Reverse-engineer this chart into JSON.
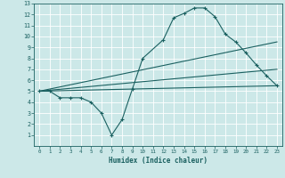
{
  "bg_color": "#cce8e8",
  "grid_color": "#ffffff",
  "line_color": "#1a6060",
  "xlabel": "Humidex (Indice chaleur)",
  "xlim": [
    -0.5,
    23.5
  ],
  "ylim": [
    0,
    13
  ],
  "xticks": [
    0,
    1,
    2,
    3,
    4,
    5,
    6,
    7,
    8,
    9,
    10,
    11,
    12,
    13,
    14,
    15,
    16,
    17,
    18,
    19,
    20,
    21,
    22,
    23
  ],
  "yticks": [
    1,
    2,
    3,
    4,
    5,
    6,
    7,
    8,
    9,
    10,
    11,
    12,
    13
  ],
  "line1_x": [
    0,
    1,
    2,
    3,
    4,
    5,
    6,
    7,
    8,
    9,
    10,
    12,
    13,
    14,
    15,
    16,
    17,
    18,
    19,
    20,
    21,
    22,
    23
  ],
  "line1_y": [
    5.0,
    5.0,
    4.4,
    4.4,
    4.4,
    4.0,
    3.0,
    1.0,
    2.4,
    5.2,
    8.0,
    9.7,
    11.7,
    12.1,
    12.6,
    12.6,
    11.8,
    10.2,
    9.5,
    8.5,
    7.4,
    6.4,
    5.5
  ],
  "line2_x": [
    0,
    23
  ],
  "line2_y": [
    5.0,
    5.5
  ],
  "line3_x": [
    0,
    23
  ],
  "line3_y": [
    5.0,
    7.0
  ],
  "line4_x": [
    0,
    23
  ],
  "line4_y": [
    5.0,
    9.5
  ]
}
